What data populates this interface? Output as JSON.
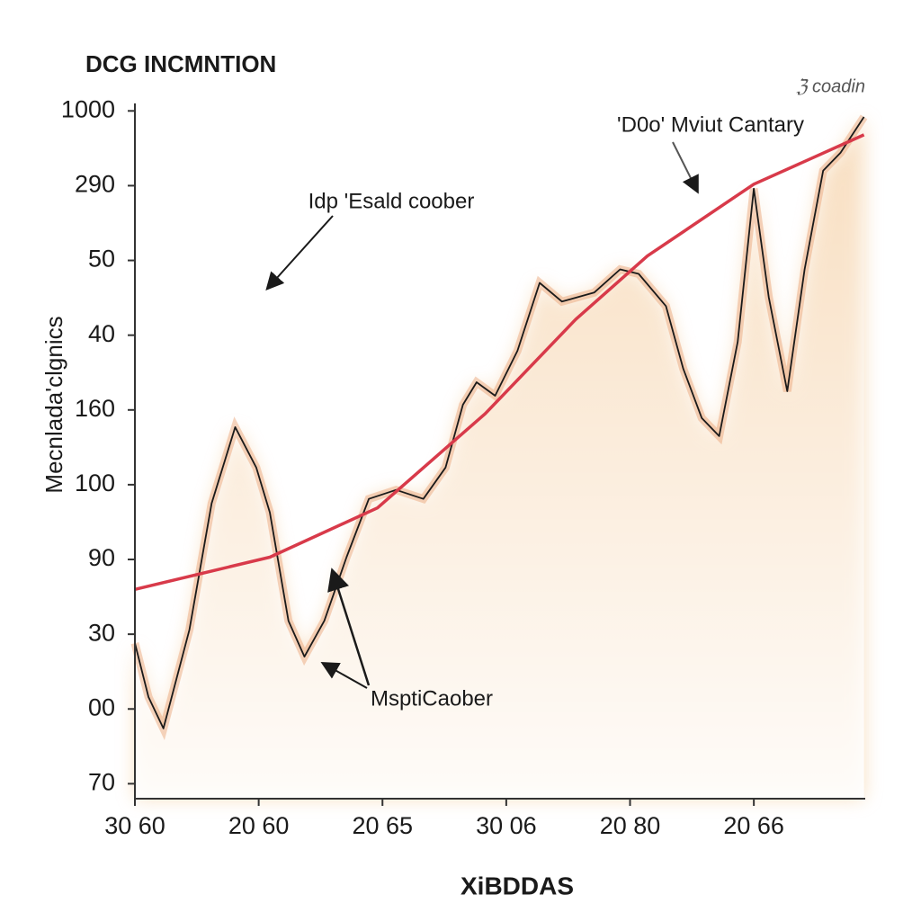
{
  "chart_data": {
    "type": "line",
    "title": "DCG INCMNTION",
    "subtitle": "ℨ coadin",
    "x_label": "XiBDDAS",
    "y_label": "Mecnlada'clgnics",
    "annotations": [
      "Idp 'Esald coober",
      "'D0o' Mviut Cantary",
      "MsptiCaober"
    ],
    "xlim": [
      0,
      5.9
    ],
    "ylim": [
      -0.2,
      9.1
    ],
    "xticks": [
      {
        "value": 0,
        "label": "30 60"
      },
      {
        "value": 1,
        "label": "20 60"
      },
      {
        "value": 2,
        "label": "20 65"
      },
      {
        "value": 3,
        "label": "30 06"
      },
      {
        "value": 4,
        "label": "20 80"
      },
      {
        "value": 5,
        "label": "20 66"
      }
    ],
    "yticks": [
      {
        "value": 0,
        "label": "70"
      },
      {
        "value": 1,
        "label": "00"
      },
      {
        "value": 2,
        "label": "30"
      },
      {
        "value": 3,
        "label": "90"
      },
      {
        "value": 4,
        "label": "100"
      },
      {
        "value": 5,
        "label": "160"
      },
      {
        "value": 6,
        "label": "40"
      },
      {
        "value": 7,
        "label": "50"
      },
      {
        "value": 8,
        "label": "290"
      },
      {
        "value": 9,
        "label": "1000"
      }
    ],
    "series": [
      {
        "color": "#1a1a1a",
        "fill": "#f3c48e",
        "x": [
          0,
          0.11,
          0.23,
          0.44,
          0.62,
          0.81,
          0.98,
          1.09,
          1.24,
          1.37,
          1.53,
          1.71,
          1.89,
          2.11,
          2.33,
          2.51,
          2.65,
          2.76,
          2.91,
          3.09,
          3.27,
          3.45,
          3.71,
          3.92,
          4.07,
          4.29,
          4.43,
          4.58,
          4.72,
          4.87,
          5.0,
          5.12,
          5.27,
          5.41,
          5.56,
          5.7,
          5.89
        ],
        "values": [
          1.88,
          1.16,
          0.74,
          2.06,
          3.75,
          4.77,
          4.23,
          3.63,
          2.18,
          1.7,
          2.18,
          3.03,
          3.81,
          3.93,
          3.81,
          4.23,
          5.07,
          5.37,
          5.19,
          5.79,
          6.7,
          6.45,
          6.57,
          6.88,
          6.82,
          6.39,
          5.55,
          4.89,
          4.65,
          5.91,
          7.96,
          6.51,
          5.25,
          6.88,
          8.2,
          8.44,
          8.92
        ]
      },
      {
        "color": "#d83a4a",
        "x": [
          0,
          1.09,
          1.96,
          2.83,
          3.56,
          4.14,
          5.0,
          5.89
        ],
        "values": [
          2.6,
          3.03,
          3.69,
          4.95,
          6.21,
          7.06,
          8.02,
          8.68
        ]
      }
    ]
  }
}
